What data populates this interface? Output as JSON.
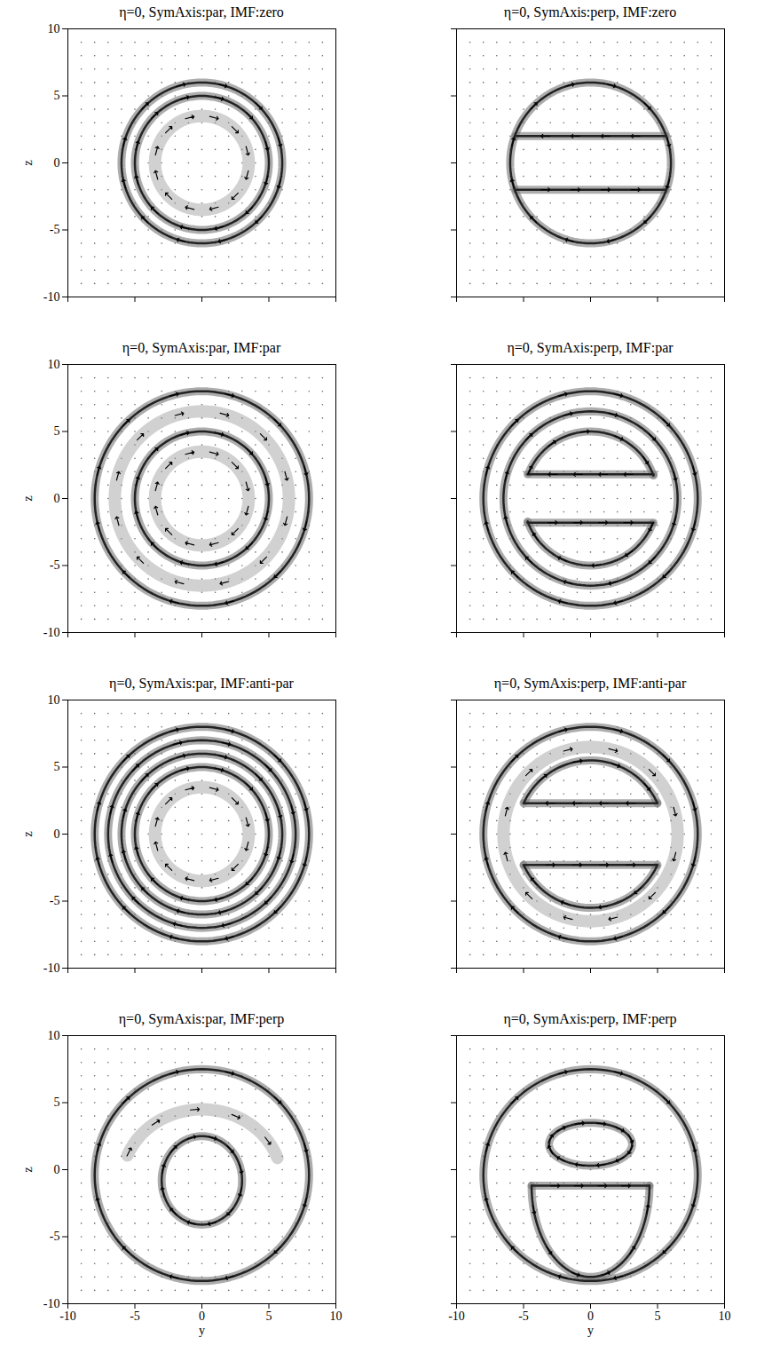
{
  "chart_data": [
    {
      "type": "field",
      "title": "η=0, SymAxis:par, IMF:zero",
      "y_label": "z",
      "tick_labels": "y",
      "xlim": [
        -10,
        10
      ],
      "ylim": [
        -10,
        10
      ],
      "xticks": [
        -10,
        -5,
        0,
        5,
        10
      ],
      "yticks": [
        -10,
        -5,
        0,
        5,
        10
      ],
      "rings": [
        {
          "cx": 0,
          "cy": 0,
          "rx": 6,
          "ry": 6,
          "direction": "cw",
          "line_style": "solid"
        },
        {
          "cx": 0,
          "cy": 0,
          "rx": 5,
          "ry": 5,
          "direction": "cw",
          "line_style": "solid"
        },
        {
          "cx": 0,
          "cy": 0,
          "rx": 3.5,
          "ry": 3.5,
          "direction": "cw",
          "line_style": "faint"
        }
      ],
      "segments": []
    },
    {
      "type": "field",
      "title": "η=0, SymAxis:perp, IMF:zero",
      "tick_labels": false,
      "xlim": [
        -10,
        10
      ],
      "ylim": [
        -10,
        10
      ],
      "xticks": [
        -10,
        -5,
        0,
        5,
        10
      ],
      "yticks": [
        -10,
        -5,
        0,
        5,
        10
      ],
      "rings": [
        {
          "cx": 0,
          "cy": 0,
          "rx": 6,
          "ry": 6,
          "direction": "cw",
          "line_style": "solid"
        }
      ],
      "segments": [
        {
          "y": [
            -5.6,
            5.6
          ],
          "z": 2,
          "direction": "left"
        },
        {
          "y": [
            -5.6,
            5.6
          ],
          "z": -2,
          "direction": "right"
        }
      ]
    },
    {
      "type": "field",
      "title": "η=0, SymAxis:par, IMF:par",
      "y_label": "z",
      "tick_labels": "y",
      "xlim": [
        -10,
        10
      ],
      "ylim": [
        -10,
        10
      ],
      "xticks": [
        -10,
        -5,
        0,
        5,
        10
      ],
      "yticks": [
        -10,
        -5,
        0,
        5,
        10
      ],
      "rings": [
        {
          "cx": 0,
          "cy": 0,
          "rx": 8,
          "ry": 8,
          "direction": "cw",
          "line_style": "solid"
        },
        {
          "cx": 0,
          "cy": 0,
          "rx": 6.5,
          "ry": 6.5,
          "direction": "cw",
          "line_style": "faint"
        },
        {
          "cx": 0,
          "cy": 0,
          "rx": 5,
          "ry": 5,
          "direction": "cw",
          "line_style": "solid"
        },
        {
          "cx": 0,
          "cy": 0,
          "rx": 3.5,
          "ry": 3.5,
          "direction": "cw",
          "line_style": "faint"
        }
      ],
      "segments": []
    },
    {
      "type": "field",
      "title": "η=0, SymAxis:perp, IMF:par",
      "tick_labels": false,
      "xlim": [
        -10,
        10
      ],
      "ylim": [
        -10,
        10
      ],
      "xticks": [
        -10,
        -5,
        0,
        5,
        10
      ],
      "yticks": [
        -10,
        -5,
        0,
        5,
        10
      ],
      "rings": [
        {
          "cx": 0,
          "cy": 0,
          "rx": 8,
          "ry": 8,
          "direction": "cw",
          "line_style": "solid"
        },
        {
          "cx": 0,
          "cy": 0,
          "rx": 6.5,
          "ry": 6.5,
          "direction": "cw",
          "line_style": "solid"
        },
        {
          "cx": 0,
          "cy": 0,
          "rx": 5,
          "ry": 5,
          "direction": "cw",
          "line_style": "solid",
          "angles": [
            20,
            160
          ]
        },
        {
          "cx": 0,
          "cy": 0,
          "rx": 5,
          "ry": 5,
          "direction": "cw",
          "line_style": "solid",
          "angles": [
            200,
            340
          ]
        }
      ],
      "segments": [
        {
          "y": [
            -4.7,
            4.7
          ],
          "z": 1.8,
          "direction": "left"
        },
        {
          "y": [
            -4.7,
            4.7
          ],
          "z": -1.8,
          "direction": "right"
        }
      ]
    },
    {
      "type": "field",
      "title": "η=0, SymAxis:par, IMF:anti-par",
      "y_label": "z",
      "tick_labels": "y",
      "xlim": [
        -10,
        10
      ],
      "ylim": [
        -10,
        10
      ],
      "xticks": [
        -10,
        -5,
        0,
        5,
        10
      ],
      "yticks": [
        -10,
        -5,
        0,
        5,
        10
      ],
      "rings": [
        {
          "cx": 0,
          "cy": 0,
          "rx": 8,
          "ry": 8,
          "direction": "cw",
          "line_style": "solid"
        },
        {
          "cx": 0,
          "cy": 0,
          "rx": 7,
          "ry": 7,
          "direction": "cw",
          "line_style": "solid"
        },
        {
          "cx": 0,
          "cy": 0,
          "rx": 6,
          "ry": 6,
          "direction": "cw",
          "line_style": "solid"
        },
        {
          "cx": 0,
          "cy": 0,
          "rx": 5,
          "ry": 5,
          "direction": "cw",
          "line_style": "solid"
        },
        {
          "cx": 0,
          "cy": 0,
          "rx": 3.5,
          "ry": 3.5,
          "direction": "cw",
          "line_style": "faint"
        }
      ],
      "segments": []
    },
    {
      "type": "field",
      "title": "η=0, SymAxis:perp, IMF:anti-par",
      "tick_labels": false,
      "xlim": [
        -10,
        10
      ],
      "ylim": [
        -10,
        10
      ],
      "xticks": [
        -10,
        -5,
        0,
        5,
        10
      ],
      "yticks": [
        -10,
        -5,
        0,
        5,
        10
      ],
      "rings": [
        {
          "cx": 0,
          "cy": 0,
          "rx": 8,
          "ry": 8,
          "direction": "cw",
          "line_style": "solid"
        },
        {
          "cx": 0,
          "cy": 0,
          "rx": 6.5,
          "ry": 6.5,
          "direction": "cw",
          "line_style": "faint"
        },
        {
          "cx": 0,
          "cy": 0,
          "rx": 5.5,
          "ry": 5.5,
          "direction": "cw",
          "line_style": "solid",
          "angles": [
            25,
            155
          ]
        },
        {
          "cx": 0,
          "cy": 0,
          "rx": 5.5,
          "ry": 5.5,
          "direction": "cw",
          "line_style": "solid",
          "angles": [
            205,
            335
          ]
        }
      ],
      "segments": [
        {
          "y": [
            -5,
            5
          ],
          "z": 2.3,
          "direction": "left"
        },
        {
          "y": [
            -5,
            5
          ],
          "z": -2.3,
          "direction": "right"
        }
      ]
    },
    {
      "type": "field",
      "title": "η=0, SymAxis:par, IMF:perp",
      "x_label": "y",
      "y_label": "z",
      "xlim": [
        -10,
        10
      ],
      "ylim": [
        -10,
        10
      ],
      "xticks": [
        -10,
        -5,
        0,
        5,
        10
      ],
      "yticks": [
        -10,
        -5,
        0,
        5,
        10
      ],
      "rings": [
        {
          "cx": 0,
          "cy": -0.4,
          "rx": 8,
          "ry": 7.9,
          "direction": "cw",
          "line_style": "solid"
        },
        {
          "cx": 0,
          "cy": -0.8,
          "rx": 3,
          "ry": 3.3,
          "direction": "cw",
          "line_style": "solid"
        },
        {
          "cx": 0,
          "cy": -1,
          "rx": 6,
          "ry": 5.5,
          "direction": "cw",
          "line_style": "faint",
          "angles": [
            20,
            160
          ]
        }
      ],
      "segments": []
    },
    {
      "type": "field",
      "title": "η=0, SymAxis:perp, IMF:perp",
      "x_label": "y",
      "tick_labels": "x",
      "xlim": [
        -10,
        10
      ],
      "ylim": [
        -10,
        10
      ],
      "xticks": [
        -10,
        -5,
        0,
        5,
        10
      ],
      "yticks": [
        -10,
        -5,
        0,
        5,
        10
      ],
      "rings": [
        {
          "cx": 0,
          "cy": -0.4,
          "rx": 8,
          "ry": 7.9,
          "direction": "cw",
          "line_style": "solid"
        },
        {
          "cx": 0,
          "cy": 1.9,
          "rx": 3.1,
          "ry": 1.6,
          "direction": "cw",
          "line_style": "solid"
        },
        {
          "cx": 0,
          "cy": -1.2,
          "rx": 4.4,
          "ry": 6.8,
          "direction": "ccw",
          "line_style": "solid",
          "angles": [
            180,
            360
          ]
        }
      ],
      "segments": [
        {
          "y": [
            -4.4,
            4.4
          ],
          "z": -1.2,
          "direction": "right"
        }
      ]
    }
  ]
}
